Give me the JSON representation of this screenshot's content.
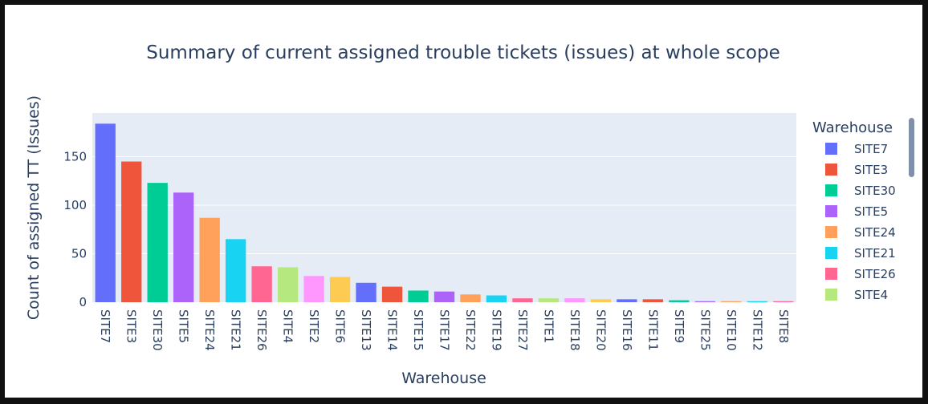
{
  "chart_data": {
    "type": "bar",
    "title": "Summary of current assigned trouble tickets (issues) at whole scope",
    "xlabel": "Warehouse",
    "ylabel": "Count of assigned TT (Issues)",
    "ylim": [
      0,
      195
    ],
    "yticks": [
      0,
      50,
      100,
      150
    ],
    "grid": true,
    "legend_title": "Warehouse",
    "legend_position": "right",
    "categories": [
      "SITE7",
      "SITE3",
      "SITE30",
      "SITE5",
      "SITE24",
      "SITE21",
      "SITE26",
      "SITE4",
      "SITE2",
      "SITE6",
      "SITE13",
      "SITE14",
      "SITE15",
      "SITE17",
      "SITE22",
      "SITE19",
      "SITE27",
      "SITE1",
      "SITE18",
      "SITE20",
      "SITE16",
      "SITE11",
      "SITE9",
      "SITE25",
      "SITE10",
      "SITE12",
      "SITE8"
    ],
    "values": [
      184,
      145,
      123,
      113,
      87,
      65,
      37,
      36,
      27,
      26,
      20,
      16,
      12,
      11,
      8,
      7,
      4,
      4,
      4,
      3,
      3,
      3,
      2,
      1,
      1,
      1,
      1
    ],
    "colors": [
      "#636efa",
      "#ef553b",
      "#00cc96",
      "#ab63fa",
      "#ffa15a",
      "#19d3f3",
      "#ff6692",
      "#b6e880",
      "#ff97ff",
      "#fecb52",
      "#636efa",
      "#ef553b",
      "#00cc96",
      "#ab63fa",
      "#ffa15a",
      "#19d3f3",
      "#ff6692",
      "#b6e880",
      "#ff97ff",
      "#fecb52",
      "#636efa",
      "#ef553b",
      "#00cc96",
      "#ab63fa",
      "#ffa15a",
      "#19d3f3",
      "#ff6692"
    ],
    "legend_visible": [
      "SITE7",
      "SITE3",
      "SITE30",
      "SITE5",
      "SITE24",
      "SITE21",
      "SITE26",
      "SITE4"
    ]
  }
}
